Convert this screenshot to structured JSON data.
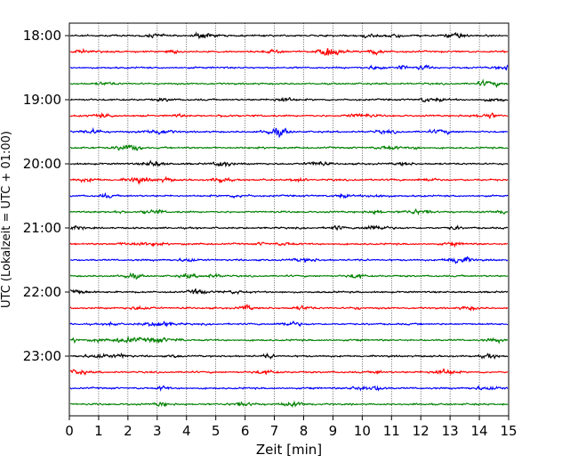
{
  "chart_data": {
    "type": "line",
    "title": "",
    "xlabel": "Zeit  [min]",
    "ylabel": "UTC (Lokalzeit = UTC + 01:00)",
    "xlim": [
      0,
      15
    ],
    "x_ticks": [
      "0",
      "1",
      "2",
      "3",
      "4",
      "5",
      "6",
      "7",
      "8",
      "9",
      "10",
      "11",
      "12",
      "13",
      "14",
      "15"
    ],
    "y_ticks": [
      "18:00",
      "19:00",
      "20:00",
      "21:00",
      "22:00",
      "23:00"
    ],
    "grid": "vertical dotted",
    "trace_interval_min": 15,
    "start_time": "18:00",
    "colors_cycle": [
      "#000000",
      "#ff0000",
      "#0000ff",
      "#008000"
    ],
    "series": [
      {
        "start": "18:00"
      },
      {
        "start": "18:15"
      },
      {
        "start": "18:30"
      },
      {
        "start": "18:45"
      },
      {
        "start": "19:00"
      },
      {
        "start": "19:15"
      },
      {
        "start": "19:30"
      },
      {
        "start": "19:45"
      },
      {
        "start": "20:00"
      },
      {
        "start": "20:15"
      },
      {
        "start": "20:30"
      },
      {
        "start": "20:45"
      },
      {
        "start": "21:00"
      },
      {
        "start": "21:15"
      },
      {
        "start": "21:30"
      },
      {
        "start": "21:45"
      },
      {
        "start": "22:00"
      },
      {
        "start": "22:15"
      },
      {
        "start": "22:30"
      },
      {
        "start": "22:45"
      },
      {
        "start": "23:00"
      },
      {
        "start": "23:15"
      },
      {
        "start": "23:30"
      },
      {
        "start": "23:45"
      }
    ]
  }
}
